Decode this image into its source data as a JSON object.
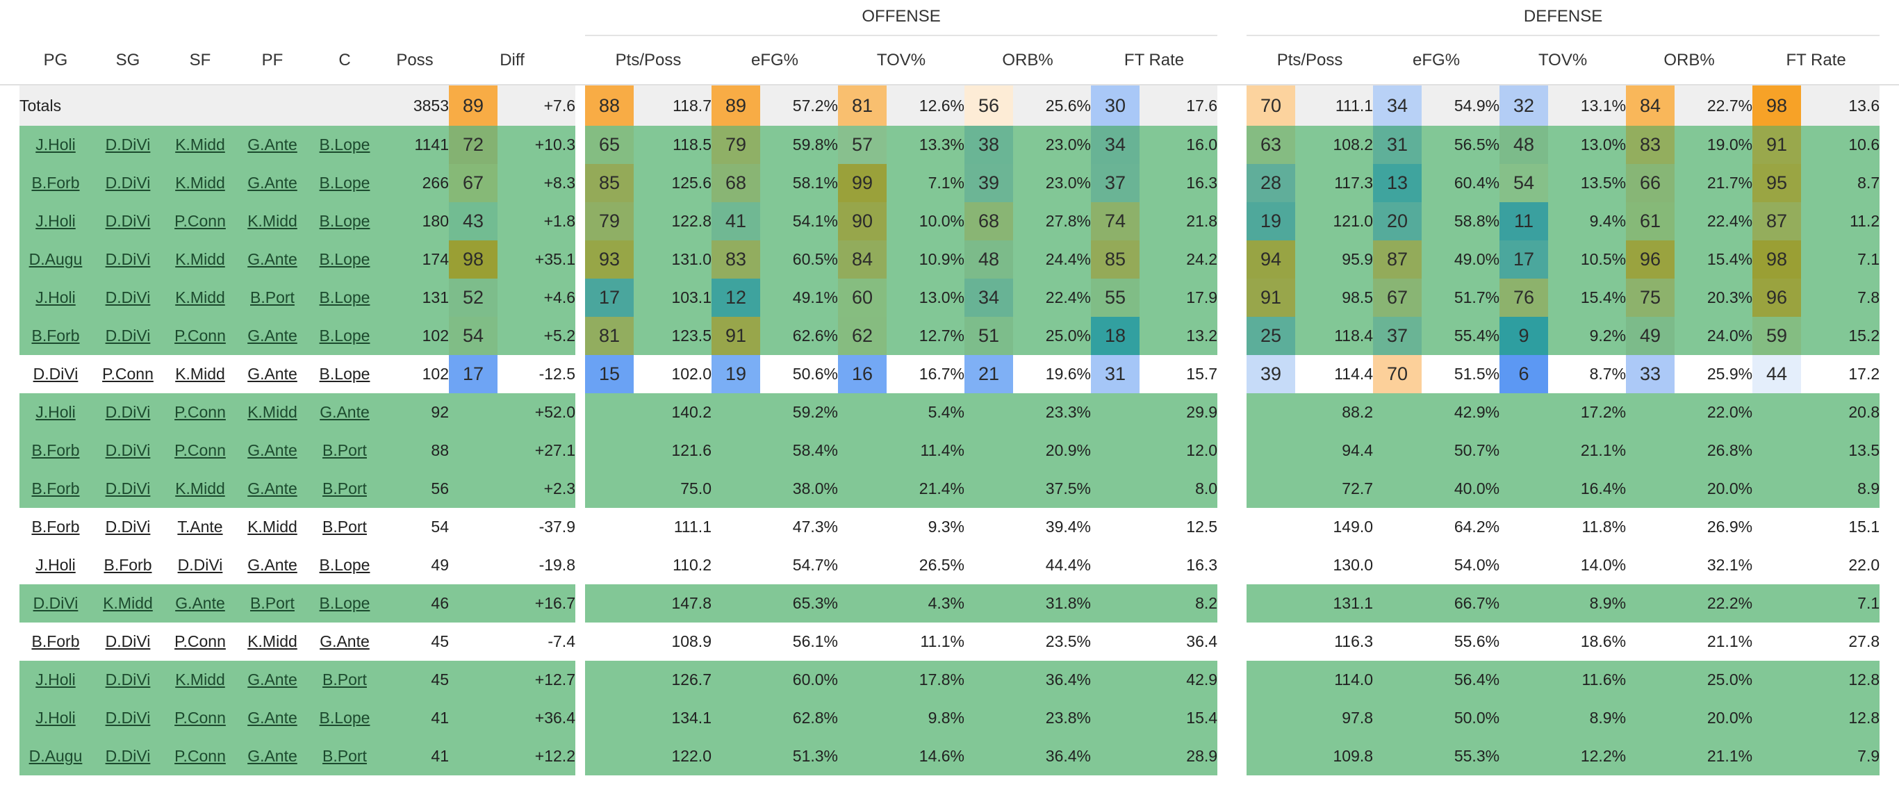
{
  "groups": {
    "offense": "OFFENSE",
    "defense": "DEFENSE"
  },
  "columns": {
    "pg": "PG",
    "sg": "SG",
    "sf": "SF",
    "pf": "PF",
    "c": "C",
    "poss": "Poss",
    "diff": "Diff",
    "pts_poss": "Pts/Poss",
    "efg": "eFG%",
    "tov": "TOV%",
    "orb": "ORB%",
    "ft_rate": "FT Rate"
  },
  "totals": {
    "label": "Totals",
    "poss": "3853",
    "diff_pct": "89",
    "diff": "+7.6",
    "offense": [
      {
        "pct": "88",
        "val": "118.7"
      },
      {
        "pct": "89",
        "val": "57.2%"
      },
      {
        "pct": "81",
        "val": "12.6%"
      },
      {
        "pct": "56",
        "val": "25.6%"
      },
      {
        "pct": "30",
        "val": "17.6"
      }
    ],
    "defense": [
      {
        "pct": "70",
        "val": "111.1"
      },
      {
        "pct": "34",
        "val": "54.9%"
      },
      {
        "pct": "32",
        "val": "13.1%"
      },
      {
        "pct": "84",
        "val": "22.7%"
      },
      {
        "pct": "98",
        "val": "13.6"
      }
    ],
    "colors": {
      "diff": "#f8ac45",
      "offense": [
        "#f8ac45",
        "#f8ac45",
        "#f9bf6f",
        "#fdecd6",
        "#a9c8f7"
      ],
      "defense": [
        "#fcd39e",
        "#b8d1f6",
        "#b3cdf5",
        "#f9b75a",
        "#f7a227"
      ]
    }
  },
  "rows": [
    {
      "players": [
        "J.Holi",
        "D.DiVi",
        "K.Midd",
        "G.Ante",
        "B.Lope"
      ],
      "style": "green",
      "poss": "1141",
      "diff_pct": "72",
      "diff": "+10.3",
      "offense": [
        {
          "pct": "65",
          "val": "118.5"
        },
        {
          "pct": "79",
          "val": "59.8%"
        },
        {
          "pct": "57",
          "val": "13.3%"
        },
        {
          "pct": "38",
          "val": "23.0%"
        },
        {
          "pct": "34",
          "val": "16.0"
        }
      ],
      "defense": [
        {
          "pct": "63",
          "val": "108.2"
        },
        {
          "pct": "31",
          "val": "56.5%"
        },
        {
          "pct": "48",
          "val": "13.0%"
        },
        {
          "pct": "83",
          "val": "19.0%"
        },
        {
          "pct": "91",
          "val": "10.6"
        }
      ],
      "colors": {
        "diff": "#84b272",
        "offense": [
          "#84bd82",
          "#8fb066",
          "#88c08e",
          "#6ab595",
          "#68b395"
        ],
        "defense": [
          "#85bc82",
          "#5fb099",
          "#7cbb8a",
          "#93ae5e",
          "#99a84c"
        ]
      }
    },
    {
      "players": [
        "B.Forb",
        "D.DiVi",
        "K.Midd",
        "G.Ante",
        "B.Lope"
      ],
      "style": "green",
      "poss": "266",
      "diff_pct": "67",
      "diff": "+8.3",
      "offense": [
        {
          "pct": "85",
          "val": "125.6"
        },
        {
          "pct": "68",
          "val": "58.1%"
        },
        {
          "pct": "99",
          "val": "7.1%"
        },
        {
          "pct": "39",
          "val": "23.0%"
        },
        {
          "pct": "37",
          "val": "16.3"
        }
      ],
      "defense": [
        {
          "pct": "28",
          "val": "117.3"
        },
        {
          "pct": "13",
          "val": "60.4%"
        },
        {
          "pct": "54",
          "val": "13.5%"
        },
        {
          "pct": "66",
          "val": "21.7%"
        },
        {
          "pct": "95",
          "val": "8.7"
        }
      ],
      "colors": {
        "diff": "#86b977",
        "offense": [
          "#94aa58",
          "#89b574",
          "#9aa13a",
          "#6cb595",
          "#6ab495"
        ],
        "defense": [
          "#60ae9a",
          "#3fa49e",
          "#86c089",
          "#87b676",
          "#9aa543"
        ]
      }
    },
    {
      "players": [
        "J.Holi",
        "D.DiVi",
        "P.Conn",
        "K.Midd",
        "B.Lope"
      ],
      "style": "green",
      "poss": "180",
      "diff_pct": "43",
      "diff": "+1.8",
      "offense": [
        {
          "pct": "79",
          "val": "122.8"
        },
        {
          "pct": "41",
          "val": "54.1%"
        },
        {
          "pct": "90",
          "val": "10.0%"
        },
        {
          "pct": "68",
          "val": "27.8%"
        },
        {
          "pct": "74",
          "val": "21.8"
        }
      ],
      "defense": [
        {
          "pct": "19",
          "val": "121.0"
        },
        {
          "pct": "20",
          "val": "58.8%"
        },
        {
          "pct": "11",
          "val": "9.4%"
        },
        {
          "pct": "61",
          "val": "22.4%"
        },
        {
          "pct": "87",
          "val": "11.2"
        }
      ],
      "colors": {
        "diff": "#72bc92",
        "offense": [
          "#8faf65",
          "#70b893",
          "#97a64b",
          "#89b574",
          "#8db16a"
        ],
        "defense": [
          "#4fa89b",
          "#55ab9b",
          "#3aa09f",
          "#86b978",
          "#94ad5c"
        ]
      }
    },
    {
      "players": [
        "D.Augu",
        "D.DiVi",
        "K.Midd",
        "G.Ante",
        "B.Lope"
      ],
      "style": "green",
      "poss": "174",
      "diff_pct": "98",
      "diff": "+35.1",
      "offense": [
        {
          "pct": "93",
          "val": "131.0"
        },
        {
          "pct": "83",
          "val": "60.5%"
        },
        {
          "pct": "84",
          "val": "10.9%"
        },
        {
          "pct": "48",
          "val": "24.4%"
        },
        {
          "pct": "85",
          "val": "24.2"
        }
      ],
      "defense": [
        {
          "pct": "94",
          "val": "95.9"
        },
        {
          "pct": "87",
          "val": "49.0%"
        },
        {
          "pct": "17",
          "val": "10.5%"
        },
        {
          "pct": "96",
          "val": "15.4%"
        },
        {
          "pct": "98",
          "val": "7.1"
        }
      ],
      "colors": {
        "diff": "#9a9f34",
        "offense": [
          "#97a647",
          "#92ad5f",
          "#92ac5c",
          "#7cbb8a",
          "#94aa58"
        ],
        "defense": [
          "#98a444",
          "#93ab5a",
          "#4ba79d",
          "#9aa33f",
          "#9a9f34"
        ]
      }
    },
    {
      "players": [
        "J.Holi",
        "D.DiVi",
        "K.Midd",
        "B.Port",
        "B.Lope"
      ],
      "style": "green",
      "poss": "131",
      "diff_pct": "52",
      "diff": "+4.6",
      "offense": [
        {
          "pct": "17",
          "val": "103.1"
        },
        {
          "pct": "12",
          "val": "49.1%"
        },
        {
          "pct": "60",
          "val": "13.0%"
        },
        {
          "pct": "34",
          "val": "22.4%"
        },
        {
          "pct": "55",
          "val": "17.9"
        }
      ],
      "defense": [
        {
          "pct": "91",
          "val": "98.5"
        },
        {
          "pct": "67",
          "val": "51.7%"
        },
        {
          "pct": "76",
          "val": "15.4%"
        },
        {
          "pct": "75",
          "val": "20.3%"
        },
        {
          "pct": "96",
          "val": "7.8"
        }
      ],
      "colors": {
        "diff": "#7dbd8b",
        "offense": [
          "#4aa69d",
          "#3ea39e",
          "#86bd80",
          "#68b395",
          "#80bd86"
        ],
        "defense": [
          "#98a64b",
          "#89b574",
          "#8db26c",
          "#8db26c",
          "#9aa33f"
        ]
      }
    },
    {
      "players": [
        "B.Forb",
        "D.DiVi",
        "P.Conn",
        "G.Ante",
        "B.Lope"
      ],
      "style": "green",
      "poss": "102",
      "diff_pct": "54",
      "diff": "+5.2",
      "offense": [
        {
          "pct": "81",
          "val": "123.5"
        },
        {
          "pct": "91",
          "val": "62.6%"
        },
        {
          "pct": "62",
          "val": "12.7%"
        },
        {
          "pct": "51",
          "val": "25.0%"
        },
        {
          "pct": "18",
          "val": "13.2"
        }
      ],
      "defense": [
        {
          "pct": "25",
          "val": "118.4"
        },
        {
          "pct": "37",
          "val": "55.4%"
        },
        {
          "pct": "9",
          "val": "9.2%"
        },
        {
          "pct": "49",
          "val": "24.0%"
        },
        {
          "pct": "59",
          "val": "15.2"
        }
      ],
      "colors": {
        "diff": "#80bd86",
        "offense": [
          "#92ad5f",
          "#98a64b",
          "#86bc80",
          "#7dbd8b",
          "#32a0a0"
        ],
        "defense": [
          "#5cae9a",
          "#6ab495",
          "#2e9ea0",
          "#7cbb8a",
          "#84bd82"
        ]
      }
    },
    {
      "players": [
        "D.DiVi",
        "P.Conn",
        "K.Midd",
        "G.Ante",
        "B.Lope"
      ],
      "style": "plain",
      "poss": "102",
      "diff_pct": "17",
      "diff": "-12.5",
      "offense": [
        {
          "pct": "15",
          "val": "102.0"
        },
        {
          "pct": "19",
          "val": "50.6%"
        },
        {
          "pct": "16",
          "val": "16.7%"
        },
        {
          "pct": "21",
          "val": "19.6%"
        },
        {
          "pct": "31",
          "val": "15.7"
        }
      ],
      "defense": [
        {
          "pct": "39",
          "val": "114.4"
        },
        {
          "pct": "70",
          "val": "51.5%"
        },
        {
          "pct": "6",
          "val": "8.7%"
        },
        {
          "pct": "33",
          "val": "25.9%"
        },
        {
          "pct": "44",
          "val": "17.2"
        }
      ],
      "colors": {
        "diff": "#6ea4f4",
        "offense": [
          "#6aa2f4",
          "#7aaef5",
          "#73a8f5",
          "#7fb0f5",
          "#a5c6f7"
        ],
        "defense": [
          "#c6dbf8",
          "#fcd09a",
          "#5c98f3",
          "#acc9f7",
          "#e4eefb"
        ]
      }
    },
    {
      "players": [
        "J.Holi",
        "D.DiVi",
        "P.Conn",
        "K.Midd",
        "G.Ante"
      ],
      "style": "green",
      "poss": "92",
      "diff": "+52.0",
      "offense": [
        {
          "val": "140.2"
        },
        {
          "val": "59.2%"
        },
        {
          "val": "5.4%"
        },
        {
          "val": "23.3%"
        },
        {
          "val": "29.9"
        }
      ],
      "defense": [
        {
          "val": "88.2"
        },
        {
          "val": "42.9%"
        },
        {
          "val": "17.2%"
        },
        {
          "val": "22.0%"
        },
        {
          "val": "20.8"
        }
      ]
    },
    {
      "players": [
        "B.Forb",
        "D.DiVi",
        "P.Conn",
        "G.Ante",
        "B.Port"
      ],
      "style": "green",
      "poss": "88",
      "diff": "+27.1",
      "offense": [
        {
          "val": "121.6"
        },
        {
          "val": "58.4%"
        },
        {
          "val": "11.4%"
        },
        {
          "val": "20.9%"
        },
        {
          "val": "12.0"
        }
      ],
      "defense": [
        {
          "val": "94.4"
        },
        {
          "val": "50.7%"
        },
        {
          "val": "21.1%"
        },
        {
          "val": "26.8%"
        },
        {
          "val": "13.5"
        }
      ]
    },
    {
      "players": [
        "B.Forb",
        "D.DiVi",
        "K.Midd",
        "G.Ante",
        "B.Port"
      ],
      "style": "green",
      "poss": "56",
      "diff": "+2.3",
      "offense": [
        {
          "val": "75.0"
        },
        {
          "val": "38.0%"
        },
        {
          "val": "21.4%"
        },
        {
          "val": "37.5%"
        },
        {
          "val": "8.0"
        }
      ],
      "defense": [
        {
          "val": "72.7"
        },
        {
          "val": "40.0%"
        },
        {
          "val": "16.4%"
        },
        {
          "val": "20.0%"
        },
        {
          "val": "8.9"
        }
      ]
    },
    {
      "players": [
        "B.Forb",
        "D.DiVi",
        "T.Ante",
        "K.Midd",
        "B.Port"
      ],
      "style": "plain",
      "poss": "54",
      "diff": "-37.9",
      "offense": [
        {
          "val": "111.1"
        },
        {
          "val": "47.3%"
        },
        {
          "val": "9.3%"
        },
        {
          "val": "39.4%"
        },
        {
          "val": "12.5"
        }
      ],
      "defense": [
        {
          "val": "149.0"
        },
        {
          "val": "64.2%"
        },
        {
          "val": "11.8%"
        },
        {
          "val": "26.9%"
        },
        {
          "val": "15.1"
        }
      ]
    },
    {
      "players": [
        "J.Holi",
        "B.Forb",
        "D.DiVi",
        "G.Ante",
        "B.Lope"
      ],
      "style": "plain",
      "poss": "49",
      "diff": "-19.8",
      "offense": [
        {
          "val": "110.2"
        },
        {
          "val": "54.7%"
        },
        {
          "val": "26.5%"
        },
        {
          "val": "44.4%"
        },
        {
          "val": "16.3"
        }
      ],
      "defense": [
        {
          "val": "130.0"
        },
        {
          "val": "54.0%"
        },
        {
          "val": "14.0%"
        },
        {
          "val": "32.1%"
        },
        {
          "val": "22.0"
        }
      ]
    },
    {
      "players": [
        "D.DiVi",
        "K.Midd",
        "G.Ante",
        "B.Port",
        "B.Lope"
      ],
      "style": "green",
      "poss": "46",
      "diff": "+16.7",
      "offense": [
        {
          "val": "147.8"
        },
        {
          "val": "65.3%"
        },
        {
          "val": "4.3%"
        },
        {
          "val": "31.8%"
        },
        {
          "val": "8.2"
        }
      ],
      "defense": [
        {
          "val": "131.1"
        },
        {
          "val": "66.7%"
        },
        {
          "val": "8.9%"
        },
        {
          "val": "22.2%"
        },
        {
          "val": "7.1"
        }
      ]
    },
    {
      "players": [
        "B.Forb",
        "D.DiVi",
        "P.Conn",
        "K.Midd",
        "G.Ante"
      ],
      "style": "plain",
      "poss": "45",
      "diff": "-7.4",
      "offense": [
        {
          "val": "108.9"
        },
        {
          "val": "56.1%"
        },
        {
          "val": "11.1%"
        },
        {
          "val": "23.5%"
        },
        {
          "val": "36.4"
        }
      ],
      "defense": [
        {
          "val": "116.3"
        },
        {
          "val": "55.6%"
        },
        {
          "val": "18.6%"
        },
        {
          "val": "21.1%"
        },
        {
          "val": "27.8"
        }
      ]
    },
    {
      "players": [
        "J.Holi",
        "D.DiVi",
        "K.Midd",
        "G.Ante",
        "B.Port"
      ],
      "style": "green",
      "poss": "45",
      "diff": "+12.7",
      "offense": [
        {
          "val": "126.7"
        },
        {
          "val": "60.0%"
        },
        {
          "val": "17.8%"
        },
        {
          "val": "36.4%"
        },
        {
          "val": "42.9"
        }
      ],
      "defense": [
        {
          "val": "114.0"
        },
        {
          "val": "56.4%"
        },
        {
          "val": "11.6%"
        },
        {
          "val": "25.0%"
        },
        {
          "val": "12.8"
        }
      ]
    },
    {
      "players": [
        "J.Holi",
        "D.DiVi",
        "P.Conn",
        "G.Ante",
        "B.Lope"
      ],
      "style": "green",
      "poss": "41",
      "diff": "+36.4",
      "offense": [
        {
          "val": "134.1"
        },
        {
          "val": "62.8%"
        },
        {
          "val": "9.8%"
        },
        {
          "val": "23.8%"
        },
        {
          "val": "15.4"
        }
      ],
      "defense": [
        {
          "val": "97.8"
        },
        {
          "val": "50.0%"
        },
        {
          "val": "8.9%"
        },
        {
          "val": "20.0%"
        },
        {
          "val": "12.8"
        }
      ]
    },
    {
      "players": [
        "D.Augu",
        "D.DiVi",
        "P.Conn",
        "G.Ante",
        "B.Port"
      ],
      "style": "green",
      "poss": "41",
      "diff": "+12.2",
      "offense": [
        {
          "val": "122.0"
        },
        {
          "val": "51.3%"
        },
        {
          "val": "14.6%"
        },
        {
          "val": "36.4%"
        },
        {
          "val": "28.9"
        }
      ],
      "defense": [
        {
          "val": "109.8"
        },
        {
          "val": "55.3%"
        },
        {
          "val": "12.2%"
        },
        {
          "val": "21.1%"
        },
        {
          "val": "7.9"
        }
      ]
    }
  ]
}
